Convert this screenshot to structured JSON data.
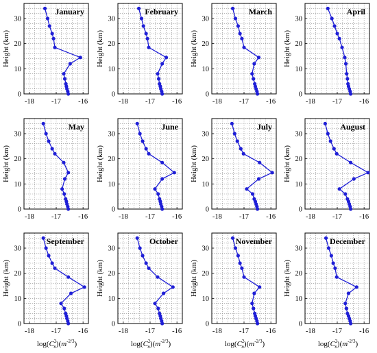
{
  "figure": {
    "y_label": "Height (km)",
    "x_label_parts": {
      "pre": "log(",
      "var": "C",
      "sup": "2",
      "sub": "n",
      "post": ")(",
      "unit": "m",
      "unit_sup": "-2/3",
      "close": ")"
    }
  },
  "colors": {
    "series": "#1f1fd6",
    "grid": "#8a8a8a"
  },
  "chart_data": [
    {
      "type": "line",
      "title": "January",
      "x": [
        -16.55,
        -16.57,
        -16.6,
        -16.62,
        -16.64,
        -16.68,
        -16.72,
        -16.48,
        -16.1,
        -17.05,
        -17.1,
        -17.15,
        -17.25,
        -17.32,
        -17.42
      ],
      "y": [
        0,
        1,
        2,
        3,
        4,
        6,
        8,
        12,
        14.5,
        18.5,
        22,
        24,
        27,
        30,
        34
      ],
      "xlim": [
        -18.2,
        -15.8
      ],
      "ylim": [
        0,
        36
      ],
      "xticks": [
        -18,
        -17,
        -16
      ],
      "yticks": [
        0,
        10,
        20,
        30
      ],
      "grid": true
    },
    {
      "type": "line",
      "title": "February",
      "x": [
        -16.55,
        -16.57,
        -16.6,
        -16.62,
        -16.65,
        -16.68,
        -16.72,
        -16.55,
        -16.4,
        -17.05,
        -17.1,
        -17.15,
        -17.25,
        -17.32,
        -17.42
      ],
      "y": [
        0,
        1,
        2,
        3,
        4,
        6,
        8,
        12,
        14.5,
        18.5,
        22,
        24,
        27,
        30,
        34
      ],
      "xlim": [
        -18.2,
        -15.8
      ],
      "ylim": [
        0,
        36
      ],
      "xticks": [
        -18,
        -17,
        -16
      ],
      "yticks": [
        0,
        10,
        20,
        30
      ],
      "grid": true
    },
    {
      "type": "line",
      "title": "March",
      "x": [
        -16.5,
        -16.52,
        -16.55,
        -16.58,
        -16.6,
        -16.65,
        -16.7,
        -16.62,
        -16.45,
        -17.0,
        -17.08,
        -17.15,
        -17.22,
        -17.32,
        -17.42
      ],
      "y": [
        0,
        1,
        2,
        3,
        4,
        6,
        8,
        12,
        14.5,
        18.5,
        22,
        24,
        27,
        30,
        34
      ],
      "xlim": [
        -18.2,
        -15.8
      ],
      "ylim": [
        0,
        36
      ],
      "xticks": [
        -18,
        -17,
        -16
      ],
      "yticks": [
        0,
        10,
        20,
        30
      ],
      "grid": true
    },
    {
      "type": "line",
      "title": "April",
      "x": [
        -16.5,
        -16.52,
        -16.55,
        -16.58,
        -16.6,
        -16.62,
        -16.65,
        -16.68,
        -16.72,
        -16.82,
        -16.92,
        -17.0,
        -17.1,
        -17.2,
        -17.35
      ],
      "y": [
        0,
        1,
        2,
        3,
        4,
        6,
        8,
        12,
        14.5,
        18.5,
        22,
        24,
        27,
        30,
        34
      ],
      "xlim": [
        -18.2,
        -15.8
      ],
      "ylim": [
        0,
        36
      ],
      "xticks": [
        -18,
        -17,
        -16
      ],
      "yticks": [
        0,
        10,
        20,
        30
      ],
      "grid": true
    },
    {
      "type": "line",
      "title": "May",
      "x": [
        -16.55,
        -16.57,
        -16.6,
        -16.62,
        -16.65,
        -16.7,
        -16.78,
        -16.68,
        -16.55,
        -16.72,
        -17.05,
        -17.15,
        -17.28,
        -17.38,
        -17.48
      ],
      "y": [
        0,
        1,
        2,
        3,
        4,
        6,
        8,
        12,
        14.5,
        18.5,
        22,
        24,
        27,
        30,
        34
      ],
      "xlim": [
        -18.2,
        -15.8
      ],
      "ylim": [
        0,
        36
      ],
      "xticks": [
        -18,
        -17,
        -16
      ],
      "yticks": [
        0,
        10,
        20,
        30
      ],
      "grid": true
    },
    {
      "type": "line",
      "title": "June",
      "x": [
        -16.55,
        -16.57,
        -16.6,
        -16.62,
        -16.65,
        -16.7,
        -16.82,
        -16.55,
        -16.1,
        -16.55,
        -17.05,
        -17.15,
        -17.28,
        -17.38,
        -17.48
      ],
      "y": [
        0,
        1,
        2,
        3,
        4,
        6,
        8,
        12,
        14.5,
        18.5,
        22,
        24,
        27,
        30,
        34
      ],
      "xlim": [
        -18.2,
        -15.8
      ],
      "ylim": [
        0,
        36
      ],
      "xticks": [
        -18,
        -17,
        -16
      ],
      "yticks": [
        0,
        10,
        20,
        30
      ],
      "grid": true
    },
    {
      "type": "line",
      "title": "July",
      "x": [
        -16.5,
        -16.52,
        -16.55,
        -16.58,
        -16.62,
        -16.68,
        -16.9,
        -16.45,
        -15.95,
        -16.42,
        -17.02,
        -17.12,
        -17.25,
        -17.35,
        -17.45
      ],
      "y": [
        0,
        1,
        2,
        3,
        4,
        6,
        8,
        12,
        14.5,
        18.5,
        22,
        24,
        27,
        30,
        34
      ],
      "xlim": [
        -18.2,
        -15.8
      ],
      "ylim": [
        0,
        36
      ],
      "xticks": [
        -18,
        -17,
        -16
      ],
      "yticks": [
        0,
        10,
        20,
        30
      ],
      "grid": true
    },
    {
      "type": "line",
      "title": "August",
      "x": [
        -16.5,
        -16.52,
        -16.55,
        -16.58,
        -16.62,
        -16.7,
        -16.92,
        -16.38,
        -15.85,
        -16.5,
        -17.02,
        -17.12,
        -17.25,
        -17.35,
        -17.45
      ],
      "y": [
        0,
        1,
        2,
        3,
        4,
        6,
        8,
        12,
        14.5,
        18.5,
        22,
        24,
        27,
        30,
        34
      ],
      "xlim": [
        -18.2,
        -15.8
      ],
      "ylim": [
        0,
        36
      ],
      "xticks": [
        -18,
        -17,
        -16
      ],
      "yticks": [
        0,
        10,
        20,
        30
      ],
      "grid": true
    },
    {
      "type": "line",
      "title": "September",
      "x": [
        -16.55,
        -16.57,
        -16.6,
        -16.62,
        -16.65,
        -16.7,
        -16.82,
        -16.45,
        -15.95,
        -16.55,
        -17.05,
        -17.15,
        -17.28,
        -17.38,
        -17.48
      ],
      "y": [
        0,
        1,
        2,
        3,
        4,
        6,
        8,
        12,
        14.5,
        18.5,
        22,
        24,
        27,
        30,
        34
      ],
      "xlim": [
        -18.2,
        -15.8
      ],
      "ylim": [
        0,
        36
      ],
      "xticks": [
        -18,
        -17,
        -16
      ],
      "yticks": [
        0,
        10,
        20,
        30
      ],
      "grid": true
    },
    {
      "type": "line",
      "title": "October",
      "x": [
        -16.55,
        -16.57,
        -16.6,
        -16.62,
        -16.65,
        -16.7,
        -16.82,
        -16.5,
        -16.15,
        -16.72,
        -17.05,
        -17.15,
        -17.28,
        -17.38,
        -17.48
      ],
      "y": [
        0,
        1,
        2,
        3,
        4,
        6,
        8,
        12,
        14.5,
        18.5,
        22,
        24,
        27,
        30,
        34
      ],
      "xlim": [
        -18.2,
        -15.8
      ],
      "ylim": [
        0,
        36
      ],
      "xticks": [
        -18,
        -17,
        -16
      ],
      "yticks": [
        0,
        10,
        20,
        30
      ],
      "grid": true
    },
    {
      "type": "line",
      "title": "November",
      "x": [
        -16.5,
        -16.52,
        -16.55,
        -16.58,
        -16.6,
        -16.65,
        -16.7,
        -16.62,
        -16.42,
        -17.0,
        -17.08,
        -17.15,
        -17.22,
        -17.32,
        -17.42
      ],
      "y": [
        0,
        1,
        2,
        3,
        4,
        6,
        8,
        12,
        14.5,
        18.5,
        22,
        24,
        27,
        30,
        34
      ],
      "xlim": [
        -18.2,
        -15.8
      ],
      "ylim": [
        0,
        36
      ],
      "xticks": [
        -18,
        -17,
        -16
      ],
      "yticks": [
        0,
        10,
        20,
        30
      ],
      "grid": true
    },
    {
      "type": "line",
      "title": "December",
      "x": [
        -16.5,
        -16.52,
        -16.55,
        -16.58,
        -16.62,
        -16.66,
        -16.7,
        -16.58,
        -16.28,
        -17.02,
        -17.08,
        -17.15,
        -17.22,
        -17.32,
        -17.42
      ],
      "y": [
        0,
        1,
        2,
        3,
        4,
        6,
        8,
        12,
        14.5,
        18.5,
        22,
        24,
        27,
        30,
        34
      ],
      "xlim": [
        -18.2,
        -15.8
      ],
      "ylim": [
        0,
        36
      ],
      "xticks": [
        -18,
        -17,
        -16
      ],
      "yticks": [
        0,
        10,
        20,
        30
      ],
      "grid": true
    }
  ]
}
